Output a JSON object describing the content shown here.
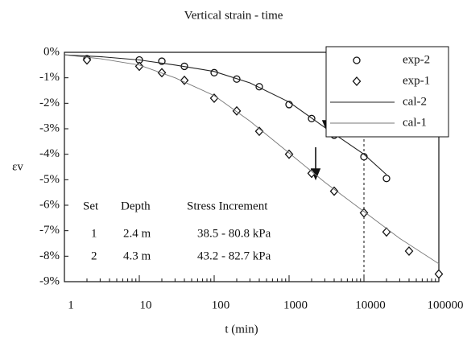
{
  "chart_data": {
    "type": "scatter-line",
    "title": "Vertical strain - time",
    "x_label": "t (min)",
    "y_label": "εv",
    "xscale": "log",
    "xlim": [
      1,
      100000
    ],
    "xticks": [
      1,
      10,
      100,
      1000,
      10000,
      100000
    ],
    "ylim": [
      -9,
      0
    ],
    "yticks": [
      {
        "value": 0,
        "label": "0%"
      },
      {
        "value": -1,
        "label": "-1%"
      },
      {
        "value": -2,
        "label": "-2%"
      },
      {
        "value": -3,
        "label": "-3%"
      },
      {
        "value": -4,
        "label": "-4%"
      },
      {
        "value": -5,
        "label": "-5%"
      },
      {
        "value": -6,
        "label": "-6%"
      },
      {
        "value": -7,
        "label": "-7%"
      },
      {
        "value": -8,
        "label": "-8%"
      },
      {
        "value": -9,
        "label": "-9%"
      }
    ],
    "reference_line_x": 10000,
    "series": [
      {
        "name": "exp-2",
        "color": "#111111",
        "marker": "circle",
        "x": [
          2,
          10,
          20,
          40,
          100,
          200,
          400,
          1000,
          2000,
          4000,
          10000,
          20000
        ],
        "values": [
          -0.25,
          -0.3,
          -0.35,
          -0.55,
          -0.8,
          -1.05,
          -1.35,
          -2.05,
          -2.6,
          -3.25,
          -4.1,
          -4.95
        ]
      },
      {
        "name": "exp-1",
        "color": "#111111",
        "marker": "diamond",
        "x": [
          2,
          10,
          20,
          40,
          100,
          200,
          400,
          1000,
          2000,
          4000,
          10000,
          20000,
          40000,
          100000
        ],
        "values": [
          -0.3,
          -0.55,
          -0.8,
          -1.1,
          -1.8,
          -2.3,
          -3.1,
          -4.0,
          -4.75,
          -5.45,
          -6.3,
          -7.05,
          -7.8,
          -8.7
        ]
      },
      {
        "name": "cal-2",
        "color": "#222222",
        "marker": "line",
        "x": [
          1,
          3,
          10,
          30,
          100,
          300,
          1000,
          3000,
          10000,
          20000
        ],
        "values": [
          -0.1,
          -0.17,
          -0.3,
          -0.5,
          -0.75,
          -1.2,
          -1.95,
          -2.95,
          -4.0,
          -4.8
        ]
      },
      {
        "name": "cal-1",
        "color": "#777777",
        "marker": "line",
        "x": [
          1,
          3,
          10,
          30,
          100,
          300,
          1000,
          3000,
          10000,
          30000,
          100000
        ],
        "values": [
          -0.1,
          -0.25,
          -0.5,
          -1.0,
          -1.7,
          -2.7,
          -3.95,
          -5.1,
          -6.25,
          -7.3,
          -8.3
        ]
      }
    ],
    "annotation_table": {
      "header": [
        "Set",
        "Depth",
        "Stress Increment"
      ],
      "rows": [
        [
          "1",
          "2.4 m",
          "38.5 - 80.8 kPa"
        ],
        [
          "2",
          "4.3 m",
          "43.2 - 82.7 kPa"
        ]
      ]
    }
  }
}
